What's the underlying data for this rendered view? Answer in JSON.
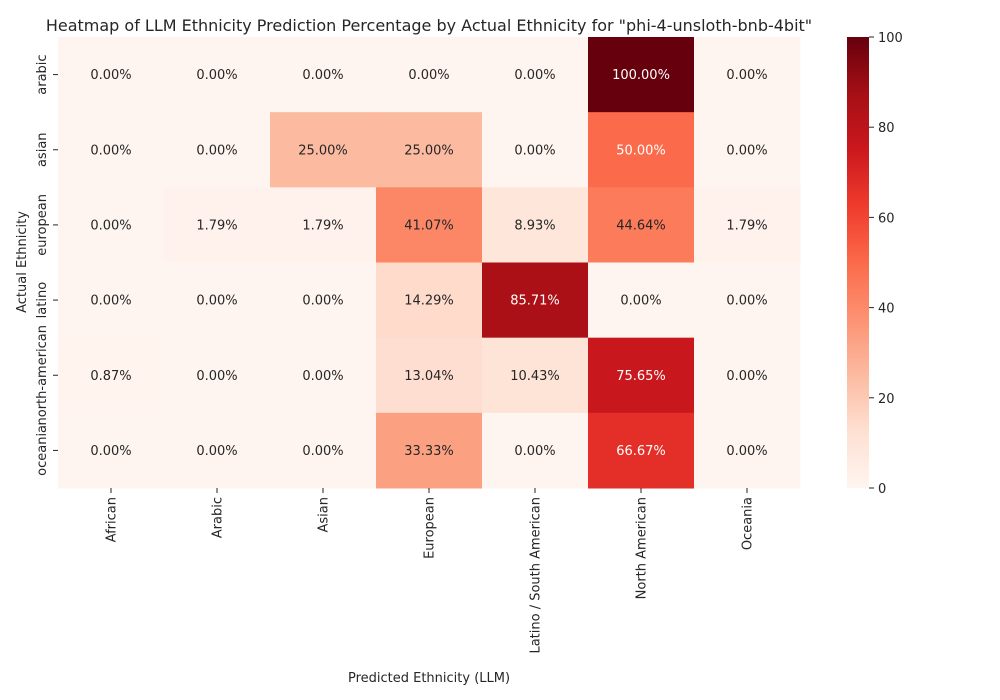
{
  "chart_data": {
    "type": "heatmap",
    "title": "Heatmap of LLM Ethnicity Prediction Percentage by Actual Ethnicity for \"phi-4-unsloth-bnb-4bit\"",
    "xlabel": "Predicted Ethnicity (LLM)",
    "ylabel": "Actual Ethnicity",
    "x_categories": [
      "African",
      "Arabic",
      "Asian",
      "European",
      "Latino / South American",
      "North American",
      "Oceania"
    ],
    "y_categories": [
      "arabic",
      "asian",
      "european",
      "latino",
      "north-american",
      "oceania"
    ],
    "values": [
      [
        0.0,
        0.0,
        0.0,
        0.0,
        0.0,
        100.0,
        0.0
      ],
      [
        0.0,
        0.0,
        25.0,
        25.0,
        0.0,
        50.0,
        0.0
      ],
      [
        0.0,
        1.79,
        1.79,
        41.07,
        8.93,
        44.64,
        1.79
      ],
      [
        0.0,
        0.0,
        0.0,
        14.29,
        85.71,
        0.0,
        0.0
      ],
      [
        0.87,
        0.0,
        0.0,
        13.04,
        10.43,
        75.65,
        0.0
      ],
      [
        0.0,
        0.0,
        0.0,
        33.33,
        0.0,
        66.67,
        0.0
      ]
    ],
    "value_format": "percent_2dp",
    "colorscale": "Reds",
    "colorbar": {
      "min": 0,
      "max": 100,
      "ticks": [
        0,
        20,
        40,
        60,
        80,
        100
      ]
    },
    "grid": false
  }
}
